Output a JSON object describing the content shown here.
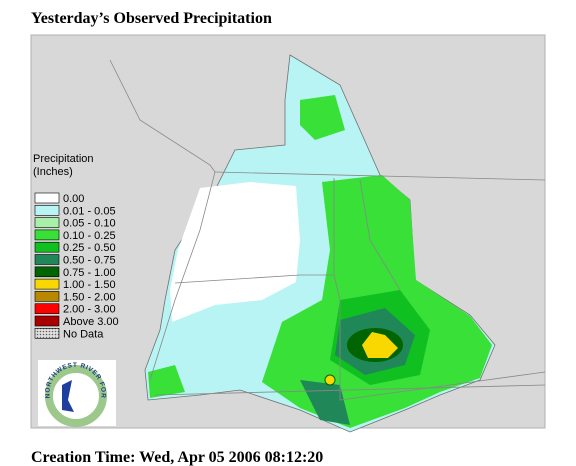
{
  "title": "Yesterday’s Observed Precipitation",
  "legend": {
    "title": [
      "Precipitation",
      "(Inches)"
    ],
    "items": [
      {
        "label": "0.00",
        "color": "#ffffff"
      },
      {
        "label": "0.01 - 0.05",
        "color": "#b8f4f4"
      },
      {
        "label": "0.05 - 0.10",
        "color": "#a8f0a8"
      },
      {
        "label": "0.10 - 0.25",
        "color": "#38e038"
      },
      {
        "label": "0.25 - 0.50",
        "color": "#10c020"
      },
      {
        "label": "0.50 - 0.75",
        "color": "#208858"
      },
      {
        "label": "0.75 - 1.00",
        "color": "#006400"
      },
      {
        "label": "1.00 - 1.50",
        "color": "#f8d800"
      },
      {
        "label": "1.50 - 2.00",
        "color": "#b88800"
      },
      {
        "label": "2.00 - 3.00",
        "color": "#ff0000"
      },
      {
        "label": "Above 3.00",
        "color": "#a80000"
      },
      {
        "label": "No Data",
        "color": "#b0b0b0"
      }
    ]
  },
  "logo_text": "NORTHWEST RIVER FORECAST CENTER",
  "footer": "Creation Time: Wed, Apr 05 2006 08:12:20"
}
